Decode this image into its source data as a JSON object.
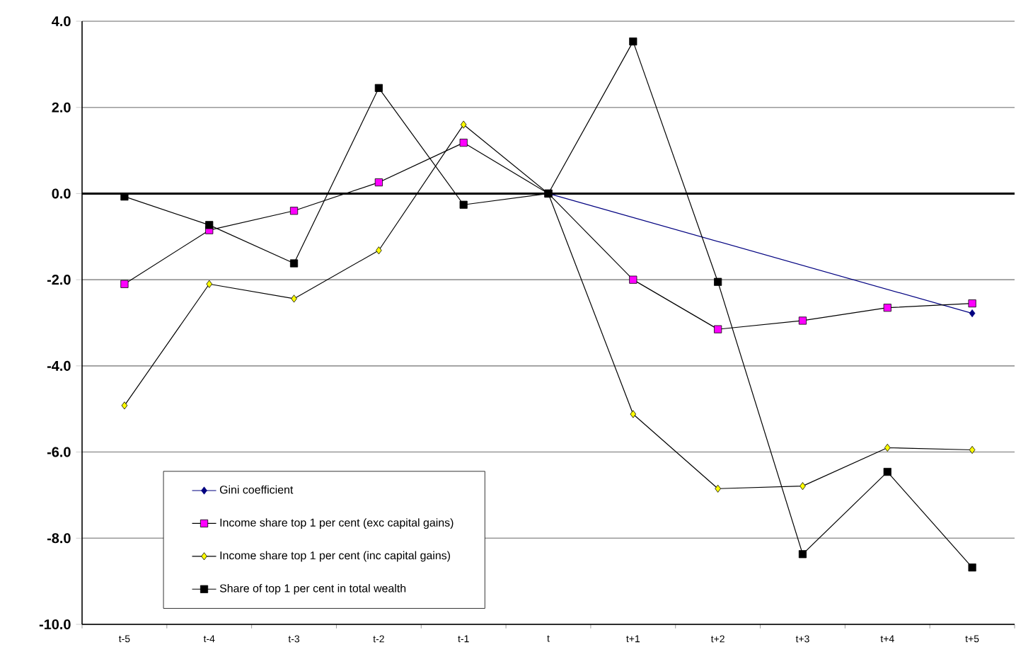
{
  "chart_data": {
    "type": "line",
    "categories": [
      "t-5",
      "t-4",
      "t-3",
      "t-2",
      "t-1",
      "t",
      "t+1",
      "t+2",
      "t+3",
      "t+4",
      "t+5"
    ],
    "series": [
      {
        "name": "Gini coefficient",
        "color": "#000080",
        "marker": "diamond",
        "values": [
          null,
          null,
          null,
          null,
          null,
          0,
          null,
          null,
          null,
          null,
          -2.78
        ]
      },
      {
        "name": "Income share top 1 per cent (exc capital gains)",
        "color": "#ff00ff",
        "marker": "square",
        "values": [
          -2.1,
          -0.85,
          -0.4,
          0.26,
          1.18,
          0,
          -2.0,
          -3.15,
          -2.95,
          -2.65,
          -2.55
        ]
      },
      {
        "name": "Income share top 1 per cent (inc capital gains)",
        "color": "#ffff00",
        "marker": "diamond",
        "values": [
          -4.92,
          -2.1,
          -2.44,
          -1.32,
          1.6,
          0,
          -5.12,
          -6.85,
          -6.79,
          -5.9,
          -5.95
        ]
      },
      {
        "name": "Share of top 1 per cent in total wealth",
        "color": "#000000",
        "marker": "square",
        "values": [
          -0.07,
          -0.73,
          -1.62,
          2.45,
          -0.26,
          0,
          3.53,
          -2.05,
          -8.37,
          -6.46,
          -8.68
        ]
      }
    ],
    "ylim": [
      -10,
      4
    ],
    "yticks": [
      {
        "value": -10,
        "label": "-10.0"
      },
      {
        "value": -8,
        "label": "-8.0"
      },
      {
        "value": -6,
        "label": "-6.0"
      },
      {
        "value": -4,
        "label": "-4.0"
      },
      {
        "value": -2,
        "label": "-2.0"
      },
      {
        "value": 0,
        "label": "0.0"
      },
      {
        "value": 2,
        "label": "2.0"
      },
      {
        "value": 4,
        "label": "4.0"
      }
    ],
    "ref_lines": [
      {
        "axis": "y",
        "value": 0
      }
    ],
    "grid": "y",
    "legend": "bottom left",
    "line_style": "solid"
  }
}
